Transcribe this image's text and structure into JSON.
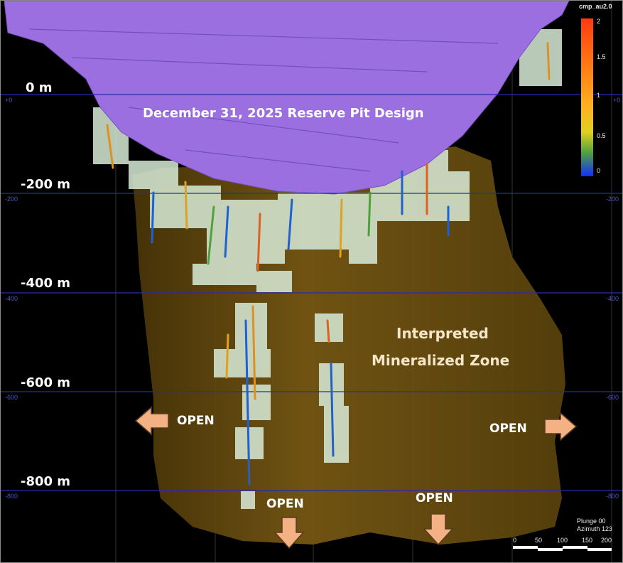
{
  "title": "December 31, 2025 Reserve Pit Design",
  "zone_label_line1": "Interpreted",
  "zone_label_line2": "Mineralized Zone",
  "elevation_labels": [
    "0 m",
    "-200 m",
    "-400 m",
    "-600 m",
    "-800 m"
  ],
  "grid_labels": [
    "+0",
    "-200",
    "-400",
    "-600",
    "-800"
  ],
  "open_labels": [
    "OPEN",
    "OPEN",
    "OPEN",
    "OPEN"
  ],
  "legend": {
    "title": "cmp_au2.0",
    "ticks": [
      "2",
      "1.5",
      "1",
      "0.5",
      "0"
    ],
    "colors": [
      "#ff3a10",
      "#ff8c1a",
      "#ffb020",
      "#e8d020",
      "#60b030",
      "#1f6fd0",
      "#1030ff"
    ]
  },
  "view": {
    "plunge": "Plunge 00",
    "azimuth": "Azimuth 123"
  },
  "scale_bar": [
    "0",
    "50",
    "100",
    "150",
    "200"
  ],
  "colors": {
    "pit": "#9b6fe0",
    "zone": "#6b4f12",
    "arrow": "#f4b183",
    "grid": "#2a2ab0"
  }
}
